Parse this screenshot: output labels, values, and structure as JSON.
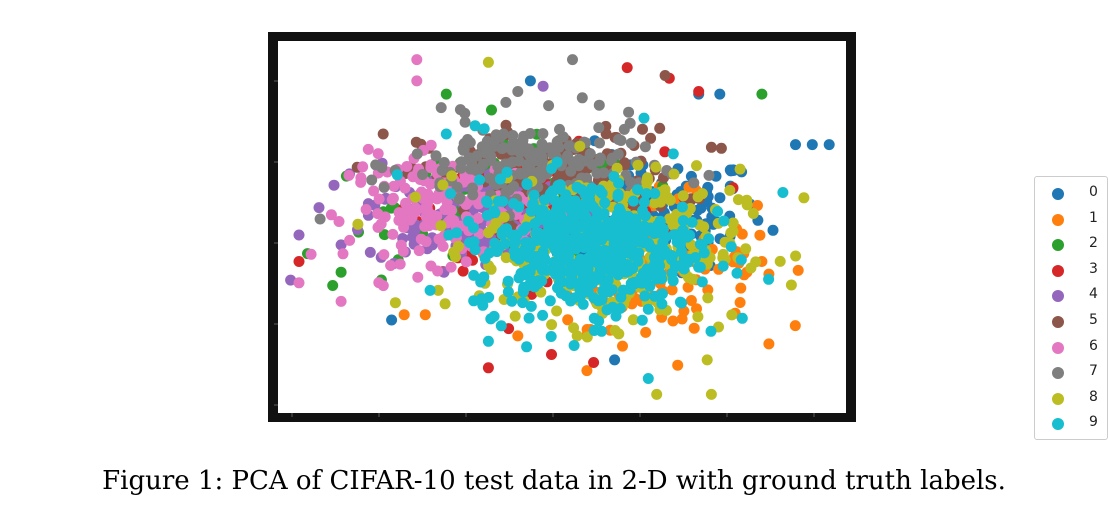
{
  "caption": "Figure 1: PCA of CIFAR-10 test data in 2-D with ground truth labels.",
  "chart_data": {
    "type": "scatter",
    "title": "",
    "xlabel": "",
    "ylabel": "",
    "tick_labels_shown": false,
    "xlim": [
      -7.5,
      6.0
    ],
    "ylim": [
      -6.5,
      7.5
    ],
    "grid": false,
    "legend_position": "right",
    "series": [
      {
        "name": "0",
        "color": "#1f77b4",
        "center": [
          1.0,
          1.0
        ],
        "spread": [
          2.8,
          2.0
        ],
        "outliers": [
          [
            5.2,
            3.6
          ],
          [
            5.6,
            3.6
          ],
          [
            4.8,
            3.6
          ],
          [
            2.5,
            5.5
          ],
          [
            3.0,
            5.5
          ],
          [
            -1.5,
            6.0
          ],
          [
            -4.8,
            -3.0
          ],
          [
            0.5,
            -4.5
          ]
        ]
      },
      {
        "name": "1",
        "color": "#ff7f0e",
        "center": [
          1.2,
          -0.8
        ],
        "spread": [
          2.4,
          2.2
        ],
        "outliers": [
          [
            -4.0,
            -2.8
          ],
          [
            -4.5,
            -2.8
          ],
          [
            2.0,
            -4.7
          ],
          [
            -1.8,
            -3.6
          ],
          [
            4.0,
            -0.8
          ],
          [
            3.5,
            -1.8
          ]
        ]
      },
      {
        "name": "2",
        "color": "#2ca02c",
        "center": [
          -1.8,
          1.3
        ],
        "spread": [
          2.6,
          2.0
        ],
        "outliers": [
          [
            -6.0,
            -1.2
          ],
          [
            4.0,
            5.5
          ],
          [
            -3.5,
            5.5
          ],
          [
            -6.8,
            -0.5
          ],
          [
            -6.2,
            -1.7
          ]
        ]
      },
      {
        "name": "3",
        "color": "#d62728",
        "center": [
          -1.2,
          1.1
        ],
        "spread": [
          2.6,
          2.0
        ],
        "outliers": [
          [
            0.8,
            6.5
          ],
          [
            -2.5,
            -4.8
          ],
          [
            -1.0,
            -4.3
          ],
          [
            -7.0,
            -0.8
          ],
          [
            2.5,
            5.6
          ],
          [
            1.8,
            6.1
          ],
          [
            0.0,
            -4.6
          ]
        ]
      },
      {
        "name": "4",
        "color": "#9467bd",
        "center": [
          -3.0,
          1.0
        ],
        "spread": [
          2.2,
          1.8
        ],
        "outliers": [
          [
            -7.0,
            0.2
          ],
          [
            -7.2,
            -1.5
          ],
          [
            -5.8,
            2.5
          ],
          [
            -1.2,
            5.8
          ]
        ]
      },
      {
        "name": "5",
        "color": "#8c564b",
        "center": [
          -1.0,
          2.4
        ],
        "spread": [
          2.8,
          1.6
        ],
        "outliers": [
          [
            1.7,
            6.2
          ],
          [
            -5.0,
            4.0
          ],
          [
            2.8,
            3.5
          ]
        ]
      },
      {
        "name": "6",
        "color": "#e377c2",
        "center": [
          -3.6,
          1.2
        ],
        "spread": [
          2.0,
          1.8
        ],
        "outliers": [
          [
            -4.2,
            6.8
          ],
          [
            -4.2,
            6.0
          ],
          [
            -7.0,
            -1.6
          ],
          [
            -6.0,
            -2.3
          ]
        ]
      },
      {
        "name": "7",
        "color": "#7f7f7f",
        "center": [
          -1.5,
          2.8
        ],
        "spread": [
          2.6,
          1.6
        ],
        "outliers": [
          [
            -0.5,
            6.8
          ],
          [
            -6.5,
            0.8
          ],
          [
            -1.8,
            5.6
          ]
        ]
      },
      {
        "name": "8",
        "color": "#bcbd22",
        "center": [
          0.4,
          -0.2
        ],
        "spread": [
          2.8,
          2.6
        ],
        "outliers": [
          [
            -2.5,
            6.7
          ],
          [
            1.5,
            -5.8
          ],
          [
            2.8,
            -5.8
          ],
          [
            -5.6,
            0.6
          ],
          [
            2.7,
            -4.5
          ],
          [
            5.0,
            1.6
          ]
        ]
      },
      {
        "name": "9",
        "color": "#17becf",
        "center": [
          -0.2,
          -0.2
        ],
        "spread": [
          2.4,
          2.3
        ],
        "outliers": [
          [
            1.2,
            4.6
          ],
          [
            -2.6,
            4.2
          ],
          [
            -3.5,
            4.0
          ],
          [
            1.3,
            -5.2
          ],
          [
            -2.5,
            -3.8
          ],
          [
            4.5,
            1.8
          ]
        ]
      }
    ]
  }
}
